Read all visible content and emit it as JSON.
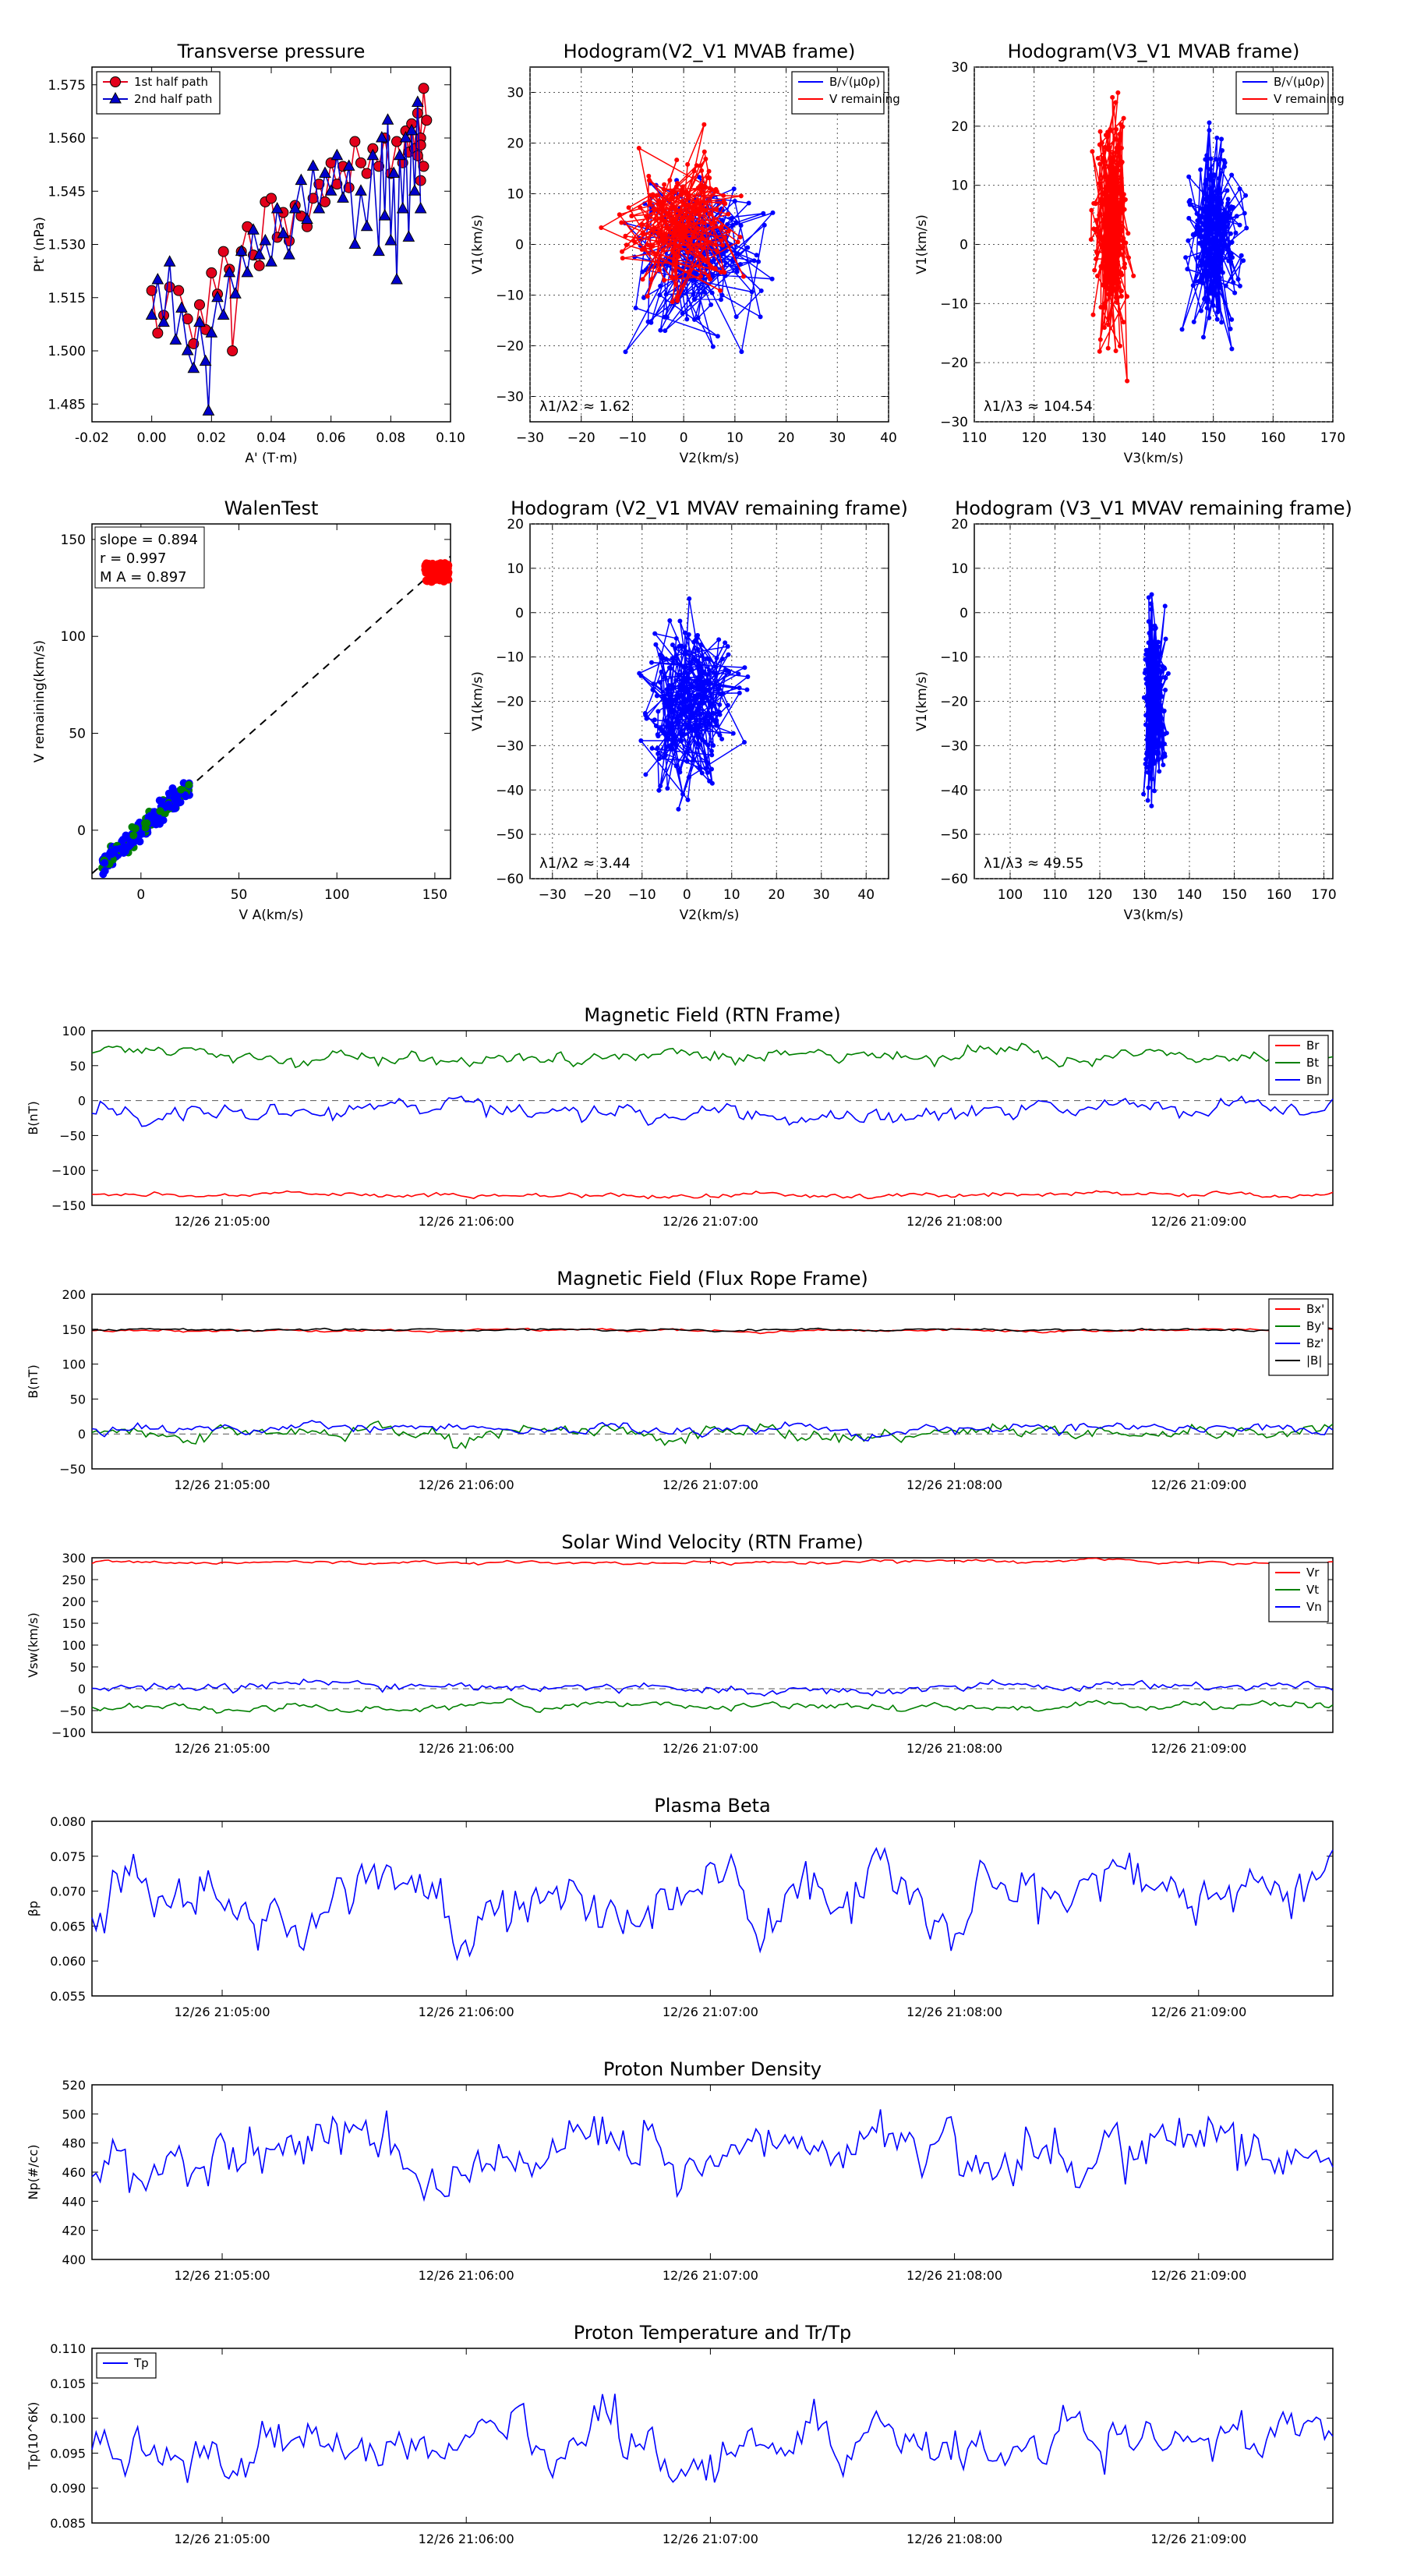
{
  "chart_data": [
    {
      "id": "p1",
      "type": "scatter",
      "title": "Transverse pressure",
      "xlabel": "A' (T·m)",
      "ylabel": "Pt' (nPa)",
      "xlim": [
        -0.02,
        0.1
      ],
      "ylim": [
        1.48,
        1.58
      ],
      "xticks": [
        "-0.02",
        "0.00",
        "0.02",
        "0.04",
        "0.06",
        "0.08",
        "0.10"
      ],
      "yticks": [
        "1.485",
        "1.500",
        "1.515",
        "1.530",
        "1.545",
        "1.560",
        "1.575"
      ],
      "legend": {
        "position": "top-left",
        "entries": [
          "1st half path",
          "2nd half path"
        ]
      },
      "series": [
        {
          "name": "1st half path",
          "color": "#e3001b",
          "marker": "circle",
          "points": [
            [
              0.0,
              1.517
            ],
            [
              0.002,
              1.505
            ],
            [
              0.004,
              1.51
            ],
            [
              0.006,
              1.518
            ],
            [
              0.009,
              1.517
            ],
            [
              0.012,
              1.509
            ],
            [
              0.014,
              1.502
            ],
            [
              0.016,
              1.513
            ],
            [
              0.018,
              1.506
            ],
            [
              0.02,
              1.522
            ],
            [
              0.022,
              1.516
            ],
            [
              0.024,
              1.528
            ],
            [
              0.026,
              1.523
            ],
            [
              0.027,
              1.5
            ],
            [
              0.03,
              1.528
            ],
            [
              0.032,
              1.535
            ],
            [
              0.034,
              1.527
            ],
            [
              0.036,
              1.524
            ],
            [
              0.038,
              1.542
            ],
            [
              0.04,
              1.543
            ],
            [
              0.042,
              1.532
            ],
            [
              0.044,
              1.539
            ],
            [
              0.046,
              1.531
            ],
            [
              0.048,
              1.541
            ],
            [
              0.05,
              1.538
            ],
            [
              0.052,
              1.535
            ],
            [
              0.054,
              1.543
            ],
            [
              0.056,
              1.547
            ],
            [
              0.058,
              1.542
            ],
            [
              0.06,
              1.553
            ],
            [
              0.062,
              1.547
            ],
            [
              0.064,
              1.552
            ],
            [
              0.066,
              1.546
            ],
            [
              0.068,
              1.559
            ],
            [
              0.07,
              1.553
            ],
            [
              0.072,
              1.55
            ],
            [
              0.074,
              1.557
            ],
            [
              0.076,
              1.552
            ],
            [
              0.078,
              1.56
            ],
            [
              0.08,
              1.55
            ],
            [
              0.082,
              1.559
            ],
            [
              0.084,
              1.553
            ],
            [
              0.085,
              1.562
            ],
            [
              0.086,
              1.556
            ],
            [
              0.087,
              1.564
            ],
            [
              0.088,
              1.557
            ],
            [
              0.089,
              1.567
            ],
            [
              0.09,
              1.56
            ],
            [
              0.091,
              1.574
            ],
            [
              0.092,
              1.565
            ],
            [
              0.09,
              1.558
            ],
            [
              0.091,
              1.552
            ],
            [
              0.089,
              1.555
            ],
            [
              0.09,
              1.548
            ]
          ]
        },
        {
          "name": "2nd half path",
          "color": "#0000cc",
          "marker": "triangle",
          "points": [
            [
              0.0,
              1.51
            ],
            [
              0.002,
              1.52
            ],
            [
              0.004,
              1.508
            ],
            [
              0.006,
              1.525
            ],
            [
              0.008,
              1.503
            ],
            [
              0.01,
              1.512
            ],
            [
              0.012,
              1.5
            ],
            [
              0.014,
              1.495
            ],
            [
              0.016,
              1.508
            ],
            [
              0.018,
              1.497
            ],
            [
              0.019,
              1.483
            ],
            [
              0.02,
              1.505
            ],
            [
              0.022,
              1.515
            ],
            [
              0.024,
              1.51
            ],
            [
              0.026,
              1.522
            ],
            [
              0.028,
              1.516
            ],
            [
              0.03,
              1.528
            ],
            [
              0.032,
              1.522
            ],
            [
              0.034,
              1.534
            ],
            [
              0.036,
              1.527
            ],
            [
              0.038,
              1.531
            ],
            [
              0.04,
              1.525
            ],
            [
              0.042,
              1.54
            ],
            [
              0.044,
              1.533
            ],
            [
              0.046,
              1.527
            ],
            [
              0.048,
              1.54
            ],
            [
              0.05,
              1.548
            ],
            [
              0.052,
              1.537
            ],
            [
              0.054,
              1.552
            ],
            [
              0.056,
              1.54
            ],
            [
              0.058,
              1.55
            ],
            [
              0.06,
              1.545
            ],
            [
              0.062,
              1.555
            ],
            [
              0.064,
              1.543
            ],
            [
              0.066,
              1.552
            ],
            [
              0.068,
              1.53
            ],
            [
              0.07,
              1.545
            ],
            [
              0.072,
              1.535
            ],
            [
              0.074,
              1.555
            ],
            [
              0.076,
              1.528
            ],
            [
              0.077,
              1.56
            ],
            [
              0.078,
              1.538
            ],
            [
              0.079,
              1.565
            ],
            [
              0.08,
              1.531
            ],
            [
              0.081,
              1.55
            ],
            [
              0.082,
              1.52
            ],
            [
              0.083,
              1.555
            ],
            [
              0.084,
              1.54
            ],
            [
              0.085,
              1.56
            ],
            [
              0.086,
              1.532
            ],
            [
              0.087,
              1.562
            ],
            [
              0.088,
              1.545
            ],
            [
              0.089,
              1.57
            ],
            [
              0.09,
              1.54
            ]
          ]
        }
      ]
    },
    {
      "id": "p2",
      "type": "line",
      "title": "Hodogram(V2_V1 MVAB frame)",
      "xlabel": "V2(km/s)",
      "ylabel": "V1(km/s)",
      "xlim": [
        -30,
        40
      ],
      "ylim": [
        -35,
        35
      ],
      "xticks": [
        "−30",
        "−20",
        "−10",
        "0",
        "10",
        "20",
        "30",
        "40"
      ],
      "yticks": [
        "−30",
        "−20",
        "−10",
        "0",
        "10",
        "20",
        "30"
      ],
      "legend": {
        "position": "top-right",
        "entries": [
          "B/√(μ0ρ)",
          "V remaining"
        ]
      },
      "annotation": "λ1/λ2 ≈ 1.62"
    },
    {
      "id": "p3",
      "type": "line",
      "title": "Hodogram(V3_V1 MVAB frame)",
      "xlabel": "V3(km/s)",
      "ylabel": "V1(km/s)",
      "xlim": [
        110,
        170
      ],
      "ylim": [
        -30,
        30
      ],
      "xticks": [
        "110",
        "120",
        "130",
        "140",
        "150",
        "160",
        "170"
      ],
      "yticks": [
        "−30",
        "−20",
        "−10",
        "0",
        "10",
        "20",
        "30"
      ],
      "legend": {
        "position": "top-right",
        "entries": [
          "B/√(μ0ρ)",
          "V remaining"
        ]
      },
      "annotation": "λ1/λ3 ≈ 104.54"
    },
    {
      "id": "p4",
      "type": "scatter",
      "title": "WalenTest",
      "xlabel": "V A(km/s)",
      "ylabel": "V remaining(km/s)",
      "xlim": [
        -25,
        158
      ],
      "ylim": [
        -25,
        158
      ],
      "xticks": [
        "0",
        "50",
        "100",
        "150"
      ],
      "yticks": [
        "0",
        "50",
        "100",
        "150"
      ],
      "stats": [
        "slope = 0.894",
        "r = 0.997",
        "M A = 0.897"
      ],
      "slope": 0.894
    },
    {
      "id": "p5",
      "type": "line",
      "title": "Hodogram (V2_V1 MVAV remaining frame)",
      "xlabel": "V2(km/s)",
      "ylabel": "V1(km/s)",
      "xlim": [
        -35,
        45
      ],
      "ylim": [
        -60,
        20
      ],
      "xticks": [
        "−30",
        "−20",
        "−10",
        "0",
        "10",
        "20",
        "30",
        "40"
      ],
      "yticks": [
        "−60",
        "−50",
        "−40",
        "−30",
        "−20",
        "−10",
        "0",
        "10",
        "20"
      ],
      "annotation": "λ1/λ2 ≈ 3.44"
    },
    {
      "id": "p6",
      "type": "line",
      "title": "Hodogram (V3_V1 MVAV remaining frame)",
      "xlabel": "V3(km/s)",
      "ylabel": "V1(km/s)",
      "xlim": [
        92,
        172
      ],
      "ylim": [
        -60,
        20
      ],
      "xticks": [
        "100",
        "110",
        "120",
        "130",
        "140",
        "150",
        "160",
        "170"
      ],
      "yticks": [
        "−60",
        "−50",
        "−40",
        "−30",
        "−20",
        "−10",
        "0",
        "10",
        "20"
      ],
      "annotation": "λ1/λ3 ≈ 49.55"
    },
    {
      "id": "t1",
      "type": "line",
      "title": "Magnetic Field (RTN Frame)",
      "ylabel": "B(nT)",
      "ylim": [
        -150,
        100
      ],
      "yticks": [
        "−150",
        "−100",
        "−50",
        "0",
        "50",
        "100"
      ],
      "xticks": [
        "12/26 21:05:00",
        "12/26 21:06:00",
        "12/26 21:07:00",
        "12/26 21:08:00",
        "12/26 21:09:00"
      ],
      "legend": {
        "position": "top-right",
        "entries": [
          "Br",
          "Bt",
          "Bn"
        ]
      },
      "series": [
        {
          "name": "Br",
          "color": "#ff0000",
          "mean": -135,
          "amp": 3
        },
        {
          "name": "Bt",
          "color": "#008000",
          "mean": 65,
          "amp": 8
        },
        {
          "name": "Bn",
          "color": "#0000ff",
          "mean": -15,
          "amp": 10
        }
      ]
    },
    {
      "id": "t2",
      "type": "line",
      "title": "Magnetic Field (Flux Rope Frame)",
      "ylabel": "B(nT)",
      "ylim": [
        -50,
        200
      ],
      "yticks": [
        "−50",
        "0",
        "50",
        "100",
        "150",
        "200"
      ],
      "xticks": [
        "12/26 21:05:00",
        "12/26 21:06:00",
        "12/26 21:07:00",
        "12/26 21:08:00",
        "12/26 21:09:00"
      ],
      "legend": {
        "position": "top-right",
        "entries": [
          "Bx'",
          "By'",
          "Bz'",
          "|B|"
        ]
      },
      "series": [
        {
          "name": "Bx'",
          "color": "#ff0000",
          "mean": 148,
          "amp": 1.5
        },
        {
          "name": "By'",
          "color": "#008000",
          "mean": 2,
          "amp": 8
        },
        {
          "name": "Bz'",
          "color": "#0000ff",
          "mean": 8,
          "amp": 6
        },
        {
          "name": "|B|",
          "color": "#000000",
          "mean": 149,
          "amp": 1.2
        }
      ]
    },
    {
      "id": "t3",
      "type": "line",
      "title": "Solar Wind Velocity (RTN Frame)",
      "ylabel": "Vsw(km/s)",
      "ylim": [
        -100,
        300
      ],
      "yticks": [
        "−100",
        "−50",
        "0",
        "50",
        "100",
        "150",
        "200",
        "250",
        "300"
      ],
      "xticks": [
        "12/26 21:05:00",
        "12/26 21:06:00",
        "12/26 21:07:00",
        "12/26 21:08:00",
        "12/26 21:09:00"
      ],
      "legend": {
        "position": "top-right",
        "entries": [
          "Vr",
          "Vt",
          "Vn"
        ]
      },
      "series": [
        {
          "name": "Vr",
          "color": "#ff0000",
          "mean": 290,
          "amp": 3
        },
        {
          "name": "Vt",
          "color": "#008000",
          "mean": -40,
          "amp": 7
        },
        {
          "name": "Vn",
          "color": "#0000ff",
          "mean": 5,
          "amp": 9
        }
      ]
    },
    {
      "id": "t4",
      "type": "line",
      "title": "Plasma Beta",
      "ylabel": "βp",
      "ylim": [
        0.055,
        0.08
      ],
      "yticks": [
        "0.055",
        "0.060",
        "0.065",
        "0.070",
        "0.075",
        "0.080"
      ],
      "xticks": [
        "12/26 21:05:00",
        "12/26 21:06:00",
        "12/26 21:07:00",
        "12/26 21:08:00",
        "12/26 21:09:00"
      ],
      "series": [
        {
          "name": "beta",
          "color": "#0000ff",
          "mean": 0.069,
          "amp": 0.0035
        }
      ]
    },
    {
      "id": "t5",
      "type": "line",
      "title": "Proton Number Density",
      "ylabel": "Np(#/cc)",
      "ylim": [
        400,
        520
      ],
      "yticks": [
        "400",
        "420",
        "440",
        "460",
        "480",
        "500",
        "520"
      ],
      "xticks": [
        "12/26 21:05:00",
        "12/26 21:06:00",
        "12/26 21:07:00",
        "12/26 21:08:00",
        "12/26 21:09:00"
      ],
      "series": [
        {
          "name": "Np",
          "color": "#0000ff",
          "mean": 475,
          "amp": 16
        }
      ]
    },
    {
      "id": "t6",
      "type": "line",
      "title": "Proton Temperature and Tr/Tp",
      "ylabel": "Tp(10^6K)",
      "ylim": [
        0.085,
        0.11
      ],
      "yticks": [
        "0.085",
        "0.090",
        "0.095",
        "0.100",
        "0.105",
        "0.110"
      ],
      "xticks": [
        "12/26 21:05:00",
        "12/26 21:06:00",
        "12/26 21:07:00",
        "12/26 21:08:00",
        "12/26 21:09:00"
      ],
      "legend": {
        "position": "top-left",
        "entries": [
          "Tp"
        ]
      },
      "series": [
        {
          "name": "Tp",
          "color": "#0000ff",
          "mean": 0.096,
          "amp": 0.003
        }
      ]
    }
  ]
}
